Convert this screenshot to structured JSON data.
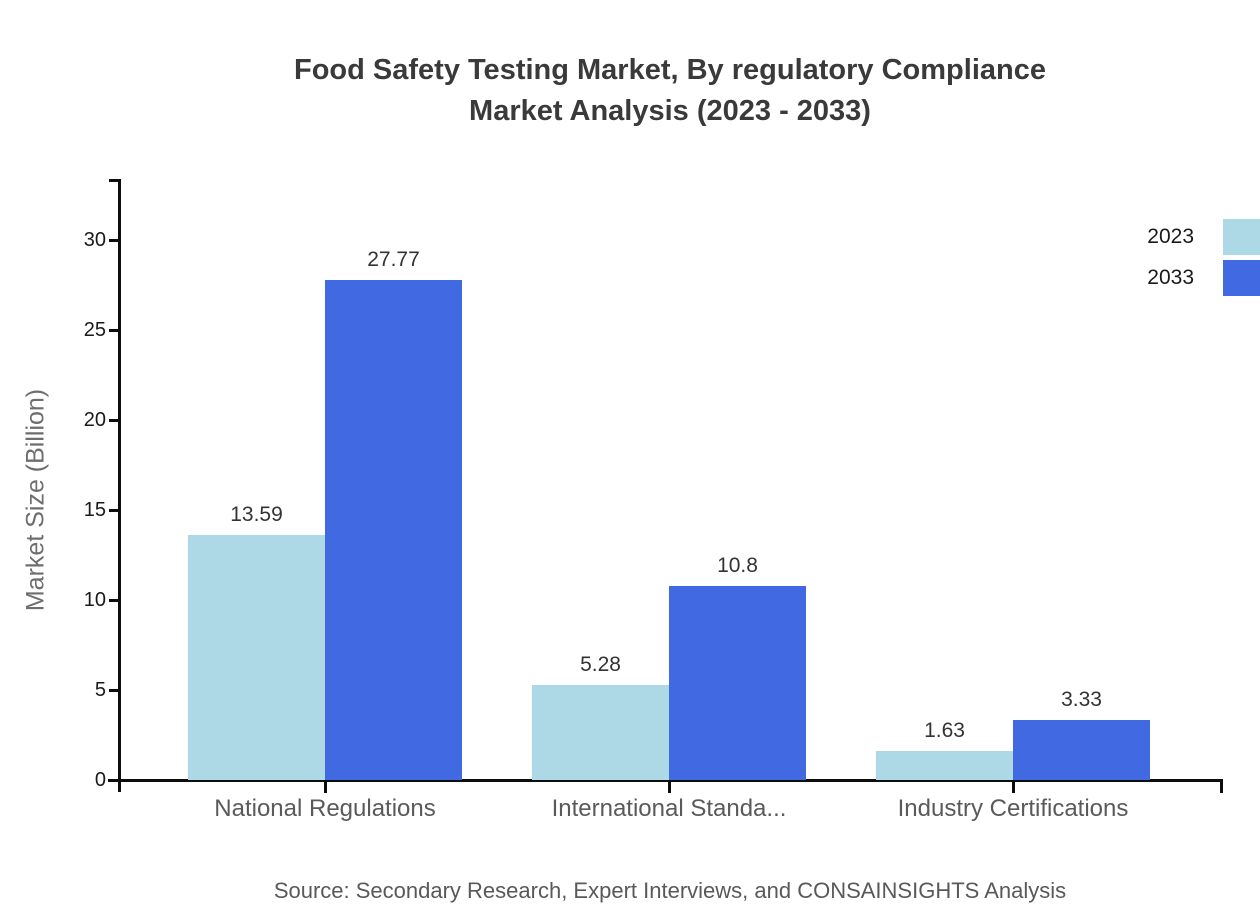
{
  "title": {
    "line1": "Food Safety Testing Market, By regulatory Compliance",
    "line2": "Market Analysis (2023 - 2033)"
  },
  "y_axis": {
    "label": "Market Size (Billion)",
    "ticks": [
      0,
      5,
      10,
      15,
      20,
      25,
      30
    ]
  },
  "legend": {
    "items": [
      {
        "label": "2023",
        "color": "#ADD8E6"
      },
      {
        "label": "2033",
        "color": "#4169E1"
      }
    ]
  },
  "source": "Source: Secondary Research, Expert Interviews, and CONSAINSIGHTS Analysis",
  "chart_data": {
    "type": "bar",
    "title": "Food Safety Testing Market, By regulatory Compliance Market Analysis (2023 - 2033)",
    "categories": [
      "National Regulations",
      "International Standa...",
      "Industry Certifications"
    ],
    "series": [
      {
        "name": "2023",
        "color": "#ADD8E6",
        "values": [
          13.59,
          5.28,
          1.63
        ]
      },
      {
        "name": "2033",
        "color": "#4169E1",
        "values": [
          27.77,
          10.8,
          3.33
        ]
      }
    ],
    "xlabel": "",
    "ylabel": "Market Size (Billion)",
    "ylim": [
      0,
      33.3
    ],
    "yticks": [
      0,
      5,
      10,
      15,
      20,
      25,
      30
    ],
    "grid": false,
    "legend_position": "top-right",
    "value_labels": true
  }
}
